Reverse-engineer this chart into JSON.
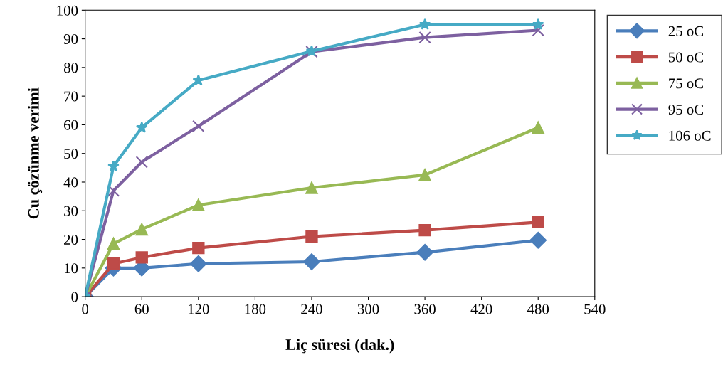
{
  "chart_data": {
    "type": "line",
    "xlabel": "Liç süresi (dak.)",
    "ylabel": "Cu çözünme verimi",
    "x": [
      0,
      30,
      60,
      120,
      240,
      360,
      480
    ],
    "series": [
      {
        "name": "25 oC",
        "color": "#4a7ebb",
        "marker": "diamond",
        "values": [
          0,
          10,
          10,
          11.5,
          12.2,
          15.5,
          19.7
        ]
      },
      {
        "name": "50 oC",
        "color": "#be4b48",
        "marker": "square",
        "values": [
          0,
          11.5,
          13.7,
          17,
          21,
          23.2,
          26
        ]
      },
      {
        "name": "75 oC",
        "color": "#98b954",
        "marker": "triangle",
        "values": [
          0,
          18.5,
          23.5,
          32,
          38,
          42.5,
          59
        ]
      },
      {
        "name": "95 oC",
        "color": "#7d60a0",
        "marker": "cross",
        "values": [
          0,
          37,
          47,
          59.5,
          85.5,
          90.5,
          93
        ]
      },
      {
        "name": "106 oC",
        "color": "#46aac5",
        "marker": "star",
        "values": [
          0,
          45.5,
          59,
          75.5,
          85.7,
          95,
          95
        ]
      }
    ],
    "xlim": [
      0,
      540
    ],
    "xticks": [
      0,
      60,
      120,
      180,
      240,
      300,
      360,
      420,
      480,
      540
    ],
    "ylim": [
      0,
      100
    ],
    "yticks": [
      0,
      10,
      20,
      30,
      40,
      50,
      60,
      70,
      80,
      90,
      100
    ],
    "grid": false,
    "legend": "right"
  }
}
